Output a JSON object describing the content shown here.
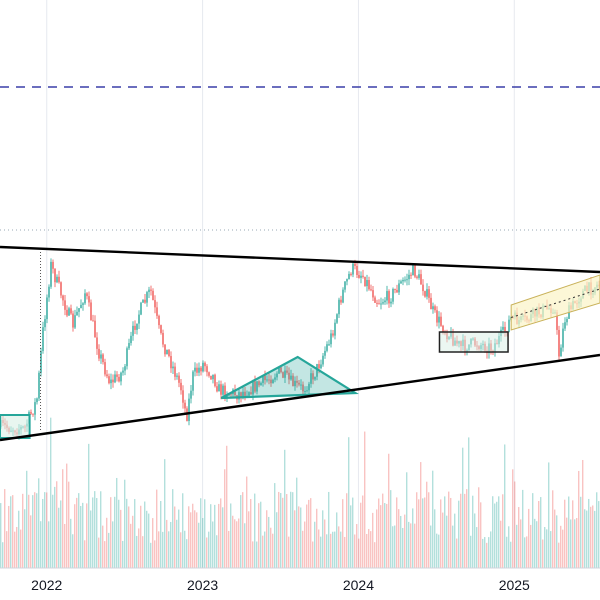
{
  "chart_data": {
    "type": "candlestick",
    "grid": true,
    "x_tick_labels": [
      "2022",
      "2023",
      "2024",
      "2025"
    ],
    "x_ticks": [
      2022.0,
      2023.0,
      2024.0,
      2025.0
    ],
    "x_range": [
      2021.7,
      2025.55
    ],
    "price_path": [
      [
        2021.72,
        427
      ],
      [
        2021.85,
        429
      ],
      [
        2021.93,
        400
      ],
      [
        2021.97,
        330
      ],
      [
        2022.02,
        265
      ],
      [
        2022.06,
        283
      ],
      [
        2022.1,
        300
      ],
      [
        2022.16,
        325
      ],
      [
        2022.24,
        292
      ],
      [
        2022.33,
        353
      ],
      [
        2022.4,
        383
      ],
      [
        2022.48,
        372
      ],
      [
        2022.57,
        318
      ],
      [
        2022.66,
        290
      ],
      [
        2022.72,
        335
      ],
      [
        2022.78,
        358
      ],
      [
        2022.86,
        390
      ],
      [
        2022.89,
        418
      ],
      [
        2022.93,
        376
      ],
      [
        2023.0,
        363
      ],
      [
        2023.06,
        376
      ],
      [
        2023.1,
        390
      ],
      [
        2023.22,
        394
      ],
      [
        2023.35,
        385
      ],
      [
        2023.48,
        372
      ],
      [
        2023.58,
        385
      ],
      [
        2023.64,
        389
      ],
      [
        2023.72,
        371
      ],
      [
        2023.82,
        336
      ],
      [
        2023.88,
        298
      ],
      [
        2023.95,
        268
      ],
      [
        2024.02,
        275
      ],
      [
        2024.12,
        302
      ],
      [
        2024.2,
        296
      ],
      [
        2024.26,
        285
      ],
      [
        2024.35,
        270
      ],
      [
        2024.42,
        290
      ],
      [
        2024.48,
        315
      ],
      [
        2024.56,
        332
      ],
      [
        2024.65,
        347
      ],
      [
        2024.75,
        343
      ],
      [
        2024.85,
        348
      ],
      [
        2024.93,
        332
      ],
      [
        2024.97,
        318
      ],
      [
        2025.05,
        322
      ],
      [
        2025.15,
        312
      ],
      [
        2025.25,
        306
      ],
      [
        2025.28,
        355
      ],
      [
        2025.32,
        318
      ],
      [
        2025.42,
        294
      ],
      [
        2025.52,
        285
      ]
    ],
    "volume_seed": 7,
    "annotations": {
      "upper_resistance_line": [
        [
          2021.7,
          247
        ],
        [
          2025.55,
          272
        ]
      ],
      "lower_support_line": [
        [
          2021.7,
          440
        ],
        [
          2025.55,
          355
        ]
      ],
      "dashed_level_color": "#3a3ea8",
      "dashed_level_y": 87,
      "faint_dotted_level_y": 230,
      "triangle_pattern": [
        [
          2023.12,
          398
        ],
        [
          2023.61,
          357
        ],
        [
          2023.98,
          393
        ]
      ],
      "left_box": [
        [
          2021.7,
          415
        ],
        [
          2021.89,
          438
        ]
      ],
      "range_box": [
        [
          2024.52,
          332
        ],
        [
          2024.96,
          352
        ]
      ],
      "rising_channel": [
        [
          2024.98,
          305
        ],
        [
          2025.55,
          275
        ],
        [
          2025.55,
          303
        ],
        [
          2024.98,
          330
        ]
      ]
    },
    "colors": {
      "up": "#26a69a",
      "down": "#ef5350",
      "line": "#000000",
      "pattern": "#26a69a",
      "box_fill": "#d9f0e6",
      "channel_fill": "#fbf3c6"
    }
  }
}
